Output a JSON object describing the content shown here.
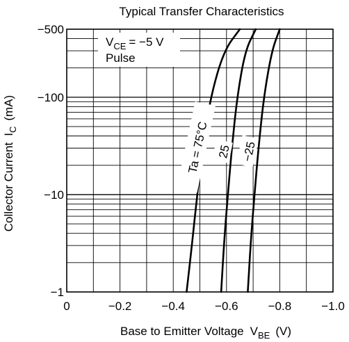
{
  "chart_data": {
    "type": "line",
    "title": "Typical Transfer Characteristics",
    "xlabel": "Base to Emitter Voltage",
    "xlabel_symbol": "V",
    "xlabel_sub": "BE",
    "xlabel_unit": "(V)",
    "ylabel": "Collector Current",
    "ylabel_symbol": "I",
    "ylabel_sub": "C",
    "ylabel_unit": "(mA)",
    "xlim": [
      0,
      -1.0
    ],
    "ylim": [
      -1,
      -500
    ],
    "y_scale": "log",
    "grid": true,
    "x_ticks": [
      "0",
      "−0.2",
      "−0.4",
      "−0.6",
      "−0.8",
      "−1.0"
    ],
    "y_ticks": [
      "−500",
      "−100",
      "−10",
      "−1"
    ],
    "annotations": {
      "condition_symbol": "V",
      "condition_sub": "CE",
      "condition_value": "= −5 V",
      "mode": "Pulse"
    },
    "series": [
      {
        "name": "Ta = 75°C",
        "points": [
          [
            -0.45,
            -1
          ],
          [
            -0.47,
            -3
          ],
          [
            -0.49,
            -10
          ],
          [
            -0.51,
            -30
          ],
          [
            -0.54,
            -100
          ],
          [
            -0.59,
            -300
          ],
          [
            -0.65,
            -500
          ]
        ]
      },
      {
        "name": "25",
        "points": [
          [
            -0.58,
            -1
          ],
          [
            -0.59,
            -3
          ],
          [
            -0.605,
            -10
          ],
          [
            -0.62,
            -30
          ],
          [
            -0.64,
            -100
          ],
          [
            -0.67,
            -300
          ],
          [
            -0.71,
            -500
          ]
        ]
      },
      {
        "name": "−25",
        "points": [
          [
            -0.68,
            -1
          ],
          [
            -0.69,
            -3
          ],
          [
            -0.705,
            -10
          ],
          [
            -0.72,
            -30
          ],
          [
            -0.74,
            -100
          ],
          [
            -0.77,
            -300
          ],
          [
            -0.8,
            -500
          ]
        ]
      }
    ]
  }
}
